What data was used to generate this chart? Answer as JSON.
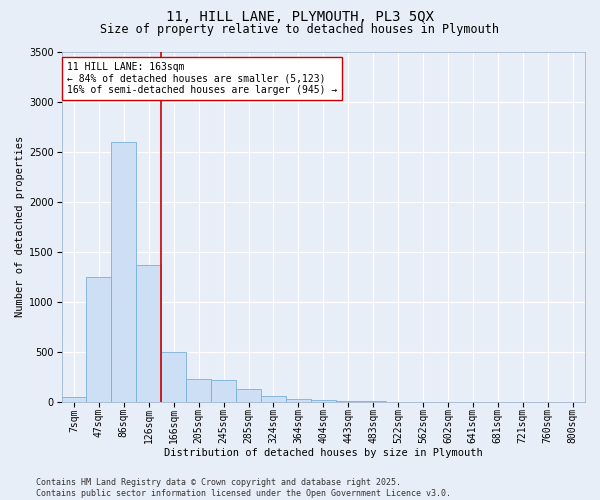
{
  "title_line1": "11, HILL LANE, PLYMOUTH, PL3 5QX",
  "title_line2": "Size of property relative to detached houses in Plymouth",
  "xlabel": "Distribution of detached houses by size in Plymouth",
  "ylabel": "Number of detached properties",
  "categories": [
    "7sqm",
    "47sqm",
    "86sqm",
    "126sqm",
    "166sqm",
    "205sqm",
    "245sqm",
    "285sqm",
    "324sqm",
    "364sqm",
    "404sqm",
    "443sqm",
    "483sqm",
    "522sqm",
    "562sqm",
    "602sqm",
    "641sqm",
    "681sqm",
    "721sqm",
    "760sqm",
    "800sqm"
  ],
  "values": [
    50,
    1250,
    2600,
    1370,
    500,
    230,
    220,
    130,
    60,
    30,
    20,
    10,
    5,
    0,
    0,
    0,
    0,
    0,
    0,
    0,
    0
  ],
  "bar_color": "#ccdff5",
  "bar_edge_color": "#7ab0d8",
  "vline_color": "#cc0000",
  "annotation_text": "11 HILL LANE: 163sqm\n← 84% of detached houses are smaller (5,123)\n16% of semi-detached houses are larger (945) →",
  "annotation_box_color": "#ffffff",
  "annotation_box_edge": "#cc0000",
  "ylim": [
    0,
    3500
  ],
  "yticks": [
    0,
    500,
    1000,
    1500,
    2000,
    2500,
    3000,
    3500
  ],
  "background_color": "#e8eef8",
  "grid_color": "#ffffff",
  "footer_line1": "Contains HM Land Registry data © Crown copyright and database right 2025.",
  "footer_line2": "Contains public sector information licensed under the Open Government Licence v3.0.",
  "title_fontsize": 10,
  "subtitle_fontsize": 8.5,
  "axis_label_fontsize": 7.5,
  "tick_fontsize": 7,
  "annotation_fontsize": 7,
  "footer_fontsize": 6
}
